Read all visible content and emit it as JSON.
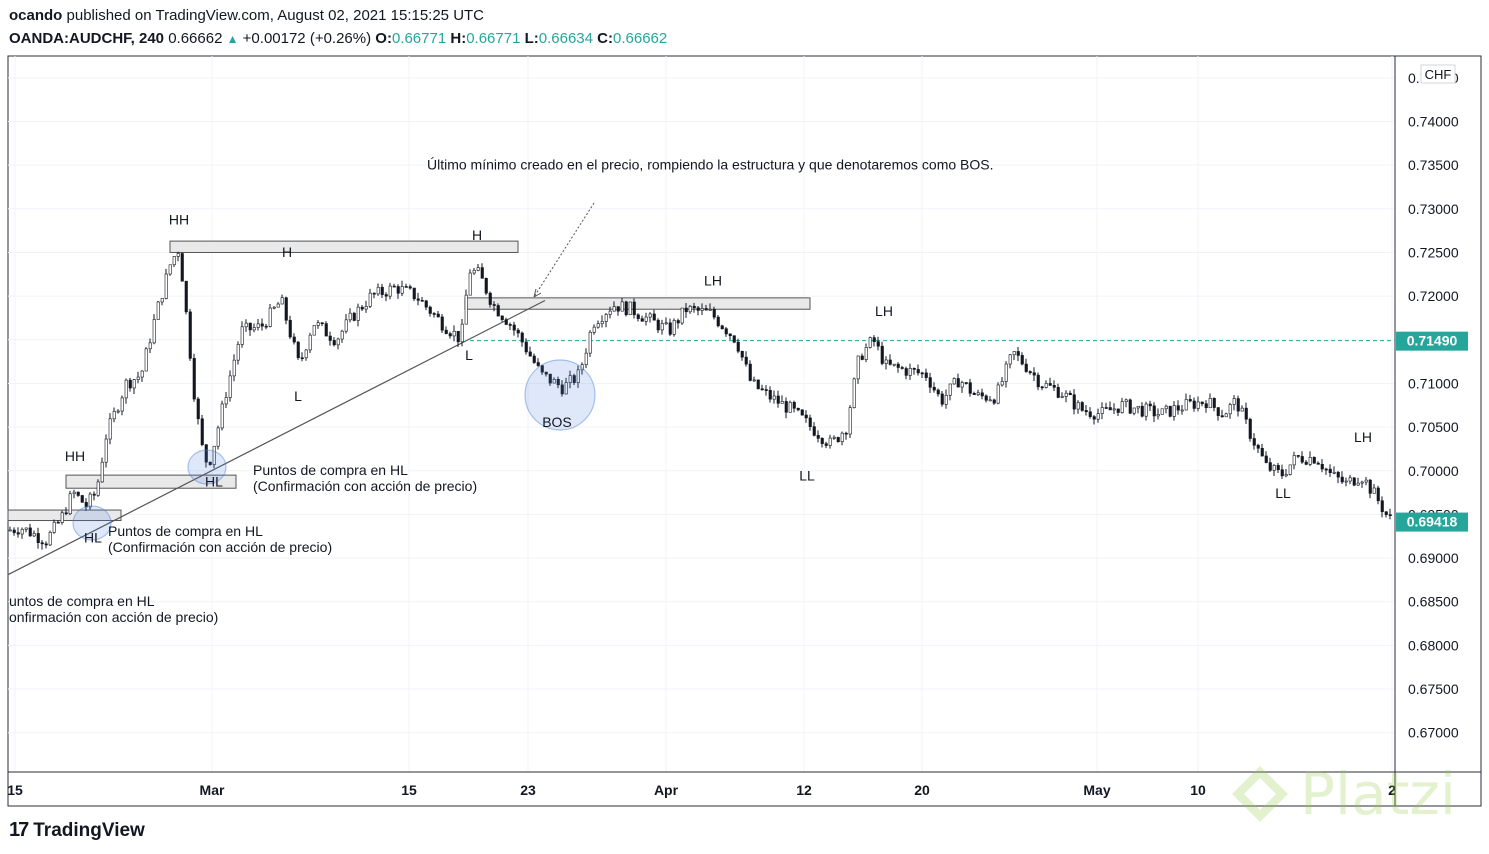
{
  "header": {
    "author": "ocando",
    "published_text": "published on TradingView.com, August 02, 2021 15:15:25 UTC",
    "symbol": "OANDA:AUDCHF, 240",
    "last": "0.66662",
    "change": "+0.00172 (+0.26%)",
    "o_label": "O:",
    "o_value": "0.66771",
    "h_label": "H:",
    "h_value": "0.66771",
    "l_label": "L:",
    "l_value": "0.66634",
    "c_label": "C:",
    "c_value": "0.66662"
  },
  "footer": {
    "brand": "TradingView",
    "watermark": "Platzi"
  },
  "colors": {
    "up": "#26a69a",
    "candle": "#131722",
    "ellipse": "#4a7fd6",
    "box_fill": "#e9e9e9",
    "watermark": "#98ca3f"
  },
  "chart_data": {
    "type": "candlestick",
    "currency": "CHF",
    "y_ticks": [
      "0.74500",
      "0.74000",
      "0.73500",
      "0.73000",
      "0.72500",
      "0.72000",
      "0.71500",
      "0.71000",
      "0.70500",
      "0.70000",
      "0.69500",
      "0.69000",
      "0.68500",
      "0.68000",
      "0.67500",
      "0.67000"
    ],
    "ylim": [
      0.6655,
      0.7475
    ],
    "x_ticks": [
      "15",
      "Mar",
      "15",
      "23",
      "Apr",
      "12",
      "20",
      "May",
      "10",
      "2"
    ],
    "price_labels": [
      {
        "text": "0.71490",
        "value": 0.7149,
        "bg": "#26a69a"
      },
      {
        "text": "0.69418",
        "value": 0.69418,
        "bg": "#26a69a"
      }
    ],
    "horizontal_line": 0.7149,
    "close_path": [
      [
        0,
        0.693
      ],
      [
        20,
        0.6935
      ],
      [
        45,
        0.692
      ],
      [
        60,
        0.6945
      ],
      [
        72,
        0.6975
      ],
      [
        85,
        0.696
      ],
      [
        95,
        0.6975
      ],
      [
        105,
        0.704
      ],
      [
        125,
        0.71
      ],
      [
        140,
        0.711
      ],
      [
        155,
        0.718
      ],
      [
        170,
        0.724
      ],
      [
        178,
        0.7255
      ],
      [
        185,
        0.718
      ],
      [
        193,
        0.709
      ],
      [
        200,
        0.703
      ],
      [
        207,
        0.7005
      ],
      [
        215,
        0.704
      ],
      [
        225,
        0.709
      ],
      [
        240,
        0.716
      ],
      [
        260,
        0.7165
      ],
      [
        280,
        0.7195
      ],
      [
        298,
        0.712
      ],
      [
        312,
        0.717
      ],
      [
        335,
        0.715
      ],
      [
        350,
        0.7175
      ],
      [
        370,
        0.72
      ],
      [
        395,
        0.721
      ],
      [
        415,
        0.72
      ],
      [
        440,
        0.717
      ],
      [
        460,
        0.715
      ],
      [
        468,
        0.723
      ],
      [
        478,
        0.7225
      ],
      [
        492,
        0.719
      ],
      [
        508,
        0.717
      ],
      [
        520,
        0.715
      ],
      [
        540,
        0.711
      ],
      [
        562,
        0.7095
      ],
      [
        578,
        0.711
      ],
      [
        592,
        0.717
      ],
      [
        612,
        0.719
      ],
      [
        630,
        0.7185
      ],
      [
        645,
        0.7175
      ],
      [
        668,
        0.716
      ],
      [
        685,
        0.7185
      ],
      [
        710,
        0.718
      ],
      [
        735,
        0.715
      ],
      [
        750,
        0.71
      ],
      [
        768,
        0.7085
      ],
      [
        790,
        0.707
      ],
      [
        810,
        0.705
      ],
      [
        830,
        0.703
      ],
      [
        845,
        0.705
      ],
      [
        858,
        0.713
      ],
      [
        872,
        0.715
      ],
      [
        885,
        0.712
      ],
      [
        905,
        0.7115
      ],
      [
        925,
        0.711
      ],
      [
        940,
        0.708
      ],
      [
        958,
        0.7105
      ],
      [
        975,
        0.7085
      ],
      [
        995,
        0.7085
      ],
      [
        1012,
        0.7135
      ],
      [
        1025,
        0.712
      ],
      [
        1040,
        0.71
      ],
      [
        1060,
        0.709
      ],
      [
        1080,
        0.707
      ],
      [
        1100,
        0.7065
      ],
      [
        1120,
        0.7075
      ],
      [
        1140,
        0.707
      ],
      [
        1160,
        0.7065
      ],
      [
        1185,
        0.7075
      ],
      [
        1205,
        0.708
      ],
      [
        1222,
        0.7065
      ],
      [
        1235,
        0.708
      ],
      [
        1250,
        0.704
      ],
      [
        1265,
        0.7005
      ],
      [
        1280,
        0.6995
      ],
      [
        1295,
        0.7015
      ],
      [
        1315,
        0.7015
      ],
      [
        1330,
        0.6995
      ],
      [
        1345,
        0.6985
      ],
      [
        1360,
        0.6995
      ],
      [
        1375,
        0.697
      ],
      [
        1385,
        0.695
      ],
      [
        1392,
        0.694
      ]
    ],
    "annotations": [
      {
        "text": "HH",
        "x": 179,
        "y": 0.7282
      },
      {
        "text": "H",
        "x": 287,
        "y": 0.7245
      },
      {
        "text": "H",
        "x": 477,
        "y": 0.7264
      },
      {
        "text": "L",
        "x": 298,
        "y": 0.708
      },
      {
        "text": "L",
        "x": 469,
        "y": 0.7127
      },
      {
        "text": "HL",
        "x": 214,
        "y": 0.6982
      },
      {
        "text": "HH",
        "x": 75,
        "y": 0.7011
      },
      {
        "text": "HL",
        "x": 93,
        "y": 0.6918
      },
      {
        "text": "BOS",
        "x": 557,
        "y": 0.705
      },
      {
        "text": "LH",
        "x": 713,
        "y": 0.7212
      },
      {
        "text": "LH",
        "x": 884,
        "y": 0.7177
      },
      {
        "text": "LL",
        "x": 807,
        "y": 0.6989
      },
      {
        "text": "LL",
        "x": 1283,
        "y": 0.6969
      },
      {
        "text": "LH",
        "x": 1363,
        "y": 0.7033
      }
    ],
    "notes": [
      {
        "lines": [
          "Puntos de compra en HL",
          "(Confirmación con acción de precio)"
        ],
        "x": 253,
        "y": 0.6995
      },
      {
        "lines": [
          "Puntos de compra en HL",
          "(Confirmación con acción de precio)"
        ],
        "x": 108,
        "y": 0.6925
      },
      {
        "lines": [
          "untos de compra en HL",
          "onfirmación con acción de precio)"
        ],
        "x": 9,
        "y": 0.6845
      },
      {
        "lines": [
          "Último mínimo creado en el precio, rompiendo la estructura y que denotaremos como BOS."
        ],
        "x": 427,
        "y": 0.7345
      }
    ]
  }
}
